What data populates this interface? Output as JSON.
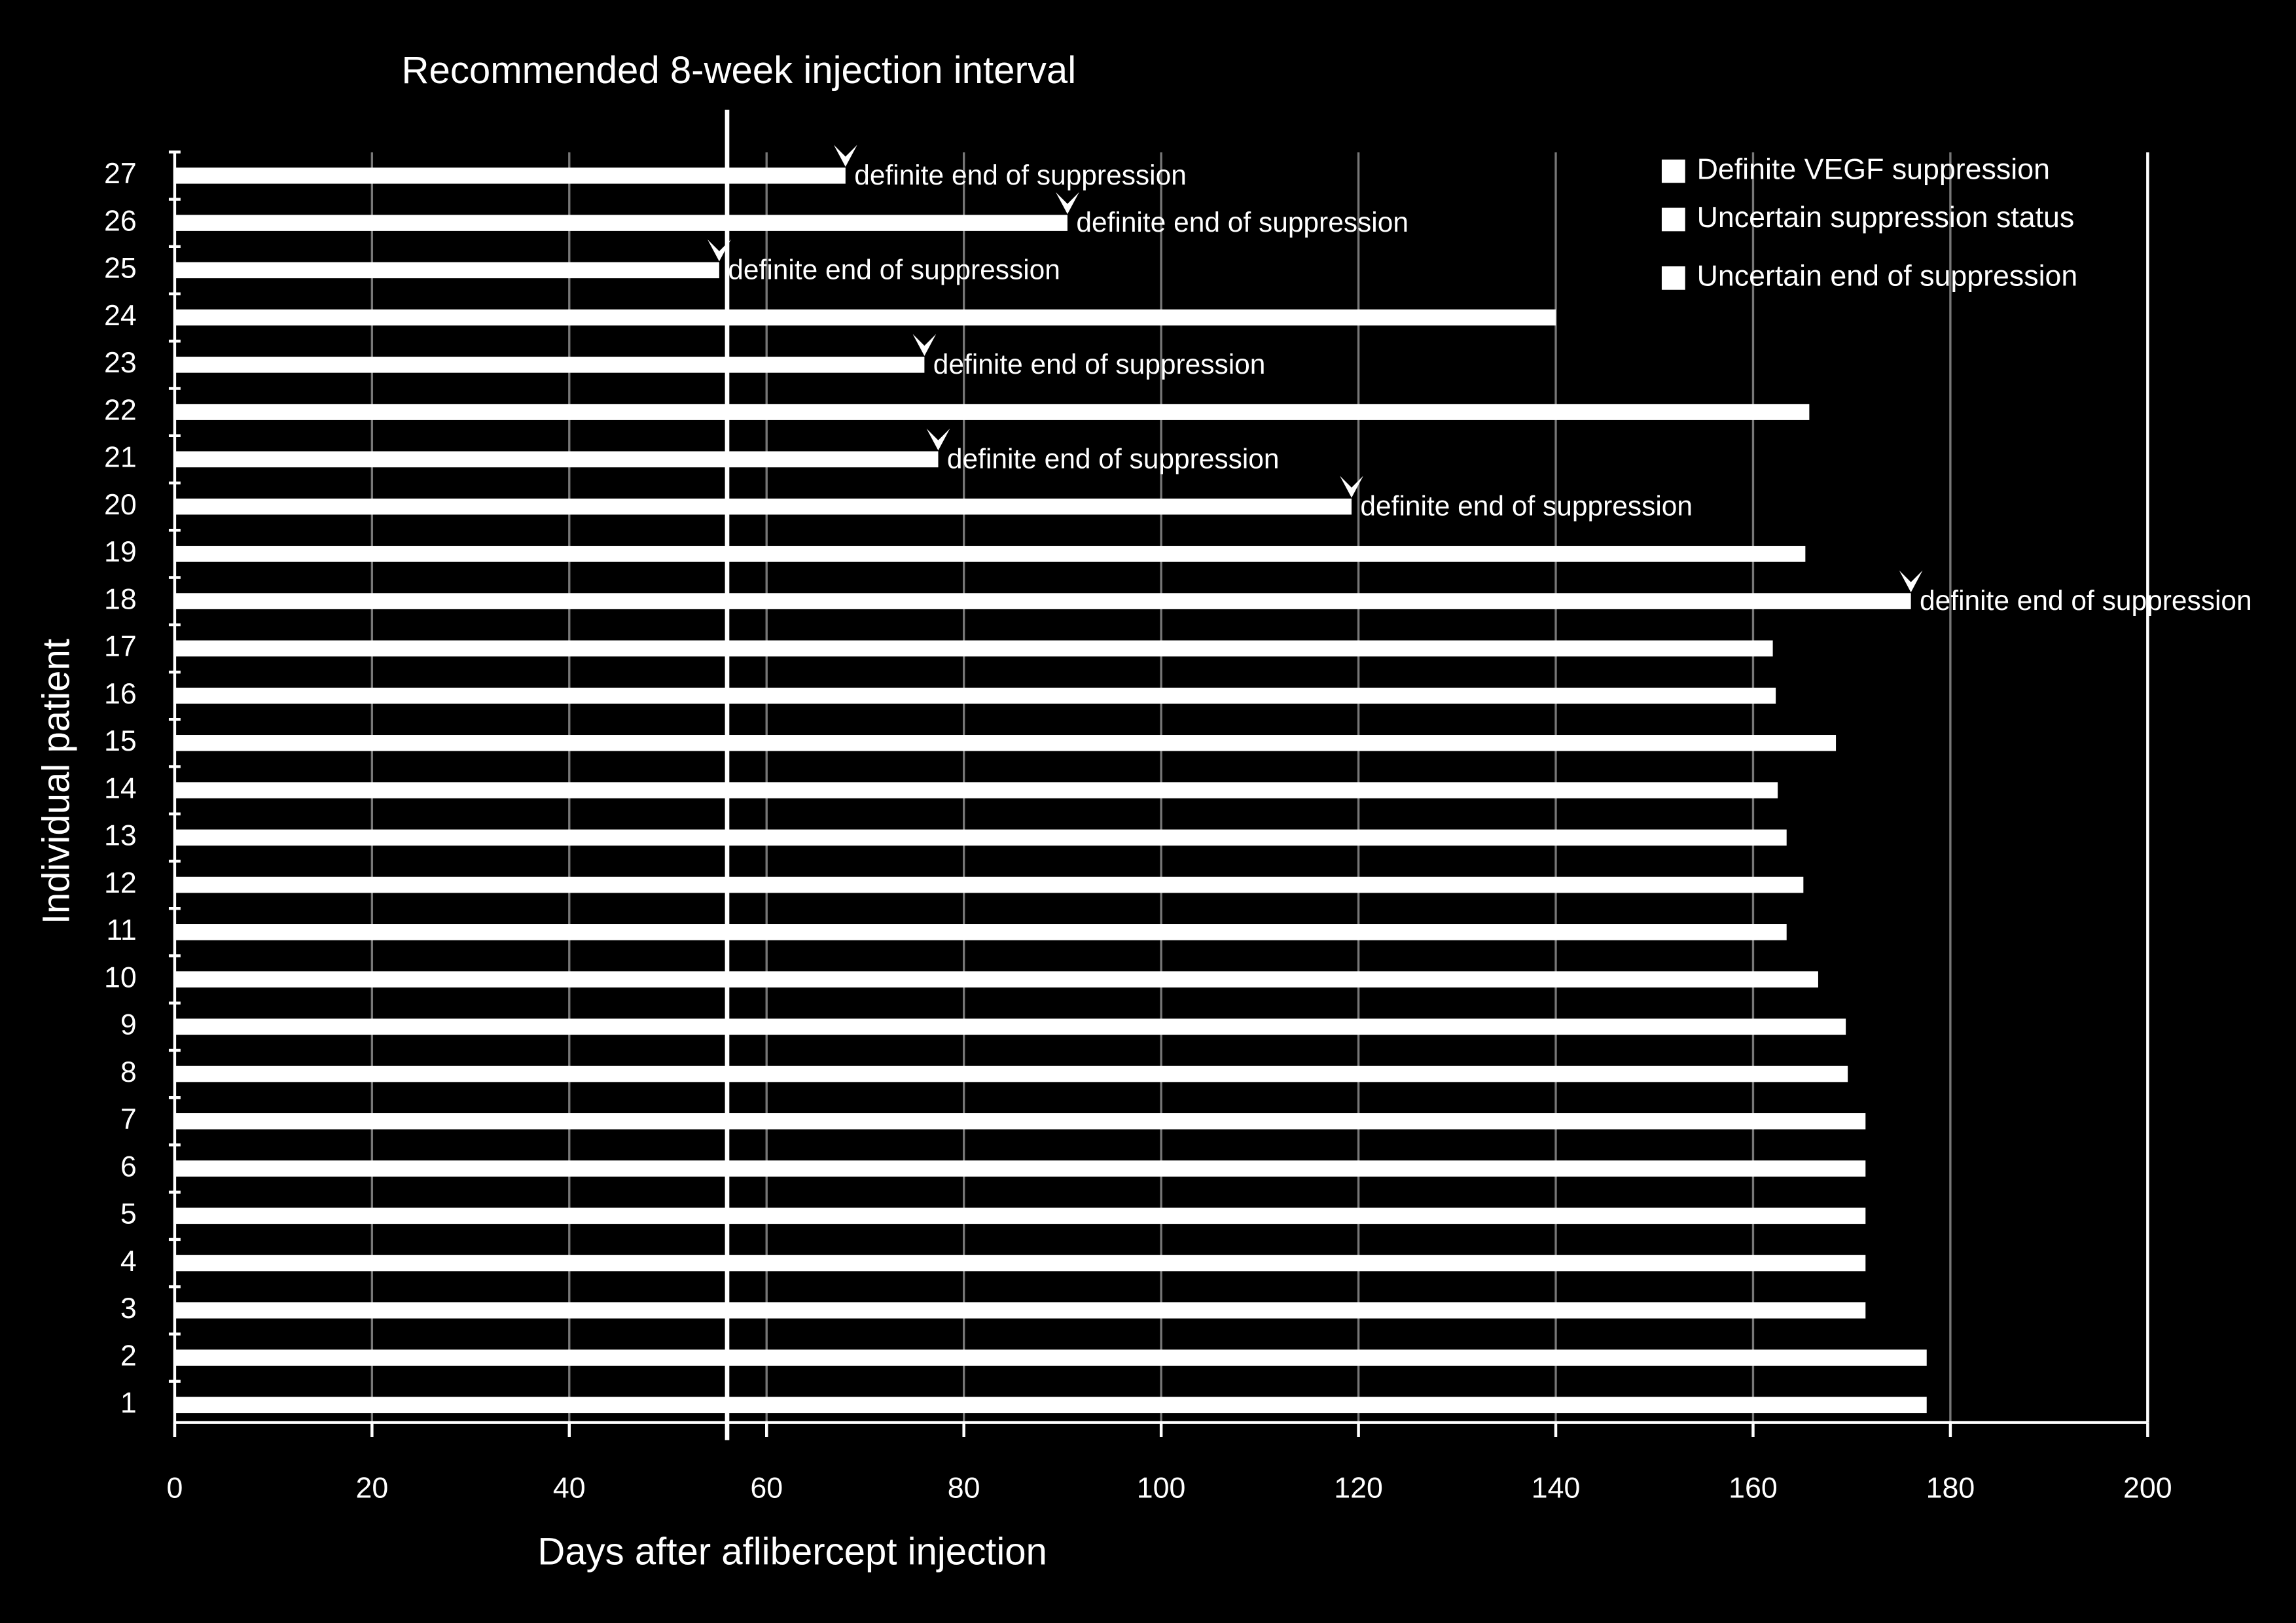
{
  "chart_data": {
    "type": "bar",
    "orientation": "horizontal",
    "xlabel": "Days after aflibercept injection",
    "ylabel": "Individual patient",
    "categories": [
      "1",
      "2",
      "3",
      "4",
      "5",
      "6",
      "7",
      "8",
      "9",
      "10",
      "11",
      "12",
      "13",
      "14",
      "15",
      "16",
      "17",
      "18",
      "19",
      "20",
      "21",
      "22",
      "23",
      "24",
      "25",
      "26",
      "27"
    ],
    "values": [
      177.6,
      177.6,
      171.4,
      171.4,
      171.4,
      171.4,
      171.4,
      169.6,
      169.4,
      166.6,
      163.4,
      165.1,
      163.4,
      162.5,
      168.4,
      162.3,
      162,
      176,
      165.3,
      119.3,
      77.4,
      165.7,
      76,
      140,
      55.2,
      90.5,
      68
    ],
    "color": "#ffffff",
    "xlim": [
      0,
      200
    ],
    "xticks": [
      0,
      20,
      40,
      60,
      80,
      100,
      120,
      140,
      160,
      180,
      200
    ],
    "grid": true,
    "reference_line": {
      "value": 56,
      "label": "Recommended 8-week injection interval"
    },
    "annotations": [
      {
        "category": "27",
        "text": "definite end of suppression"
      },
      {
        "category": "26",
        "text": "definite end of suppression"
      },
      {
        "category": "25",
        "text": "definite end of suppression"
      },
      {
        "category": "23",
        "text": "definite end of suppression"
      },
      {
        "category": "21",
        "text": "definite end of suppression"
      },
      {
        "category": "20",
        "text": "definite end of suppression"
      },
      {
        "category": "18",
        "text": "definite end of suppression"
      }
    ],
    "legend": [
      {
        "label": "Definite VEGF suppression",
        "color": "#ffffff"
      },
      {
        "label": "Uncertain suppression status",
        "color": "#ffffff"
      },
      {
        "label": "Uncertain end of suppression",
        "color": "#ffffff"
      }
    ],
    "legend_position": "upper right"
  }
}
